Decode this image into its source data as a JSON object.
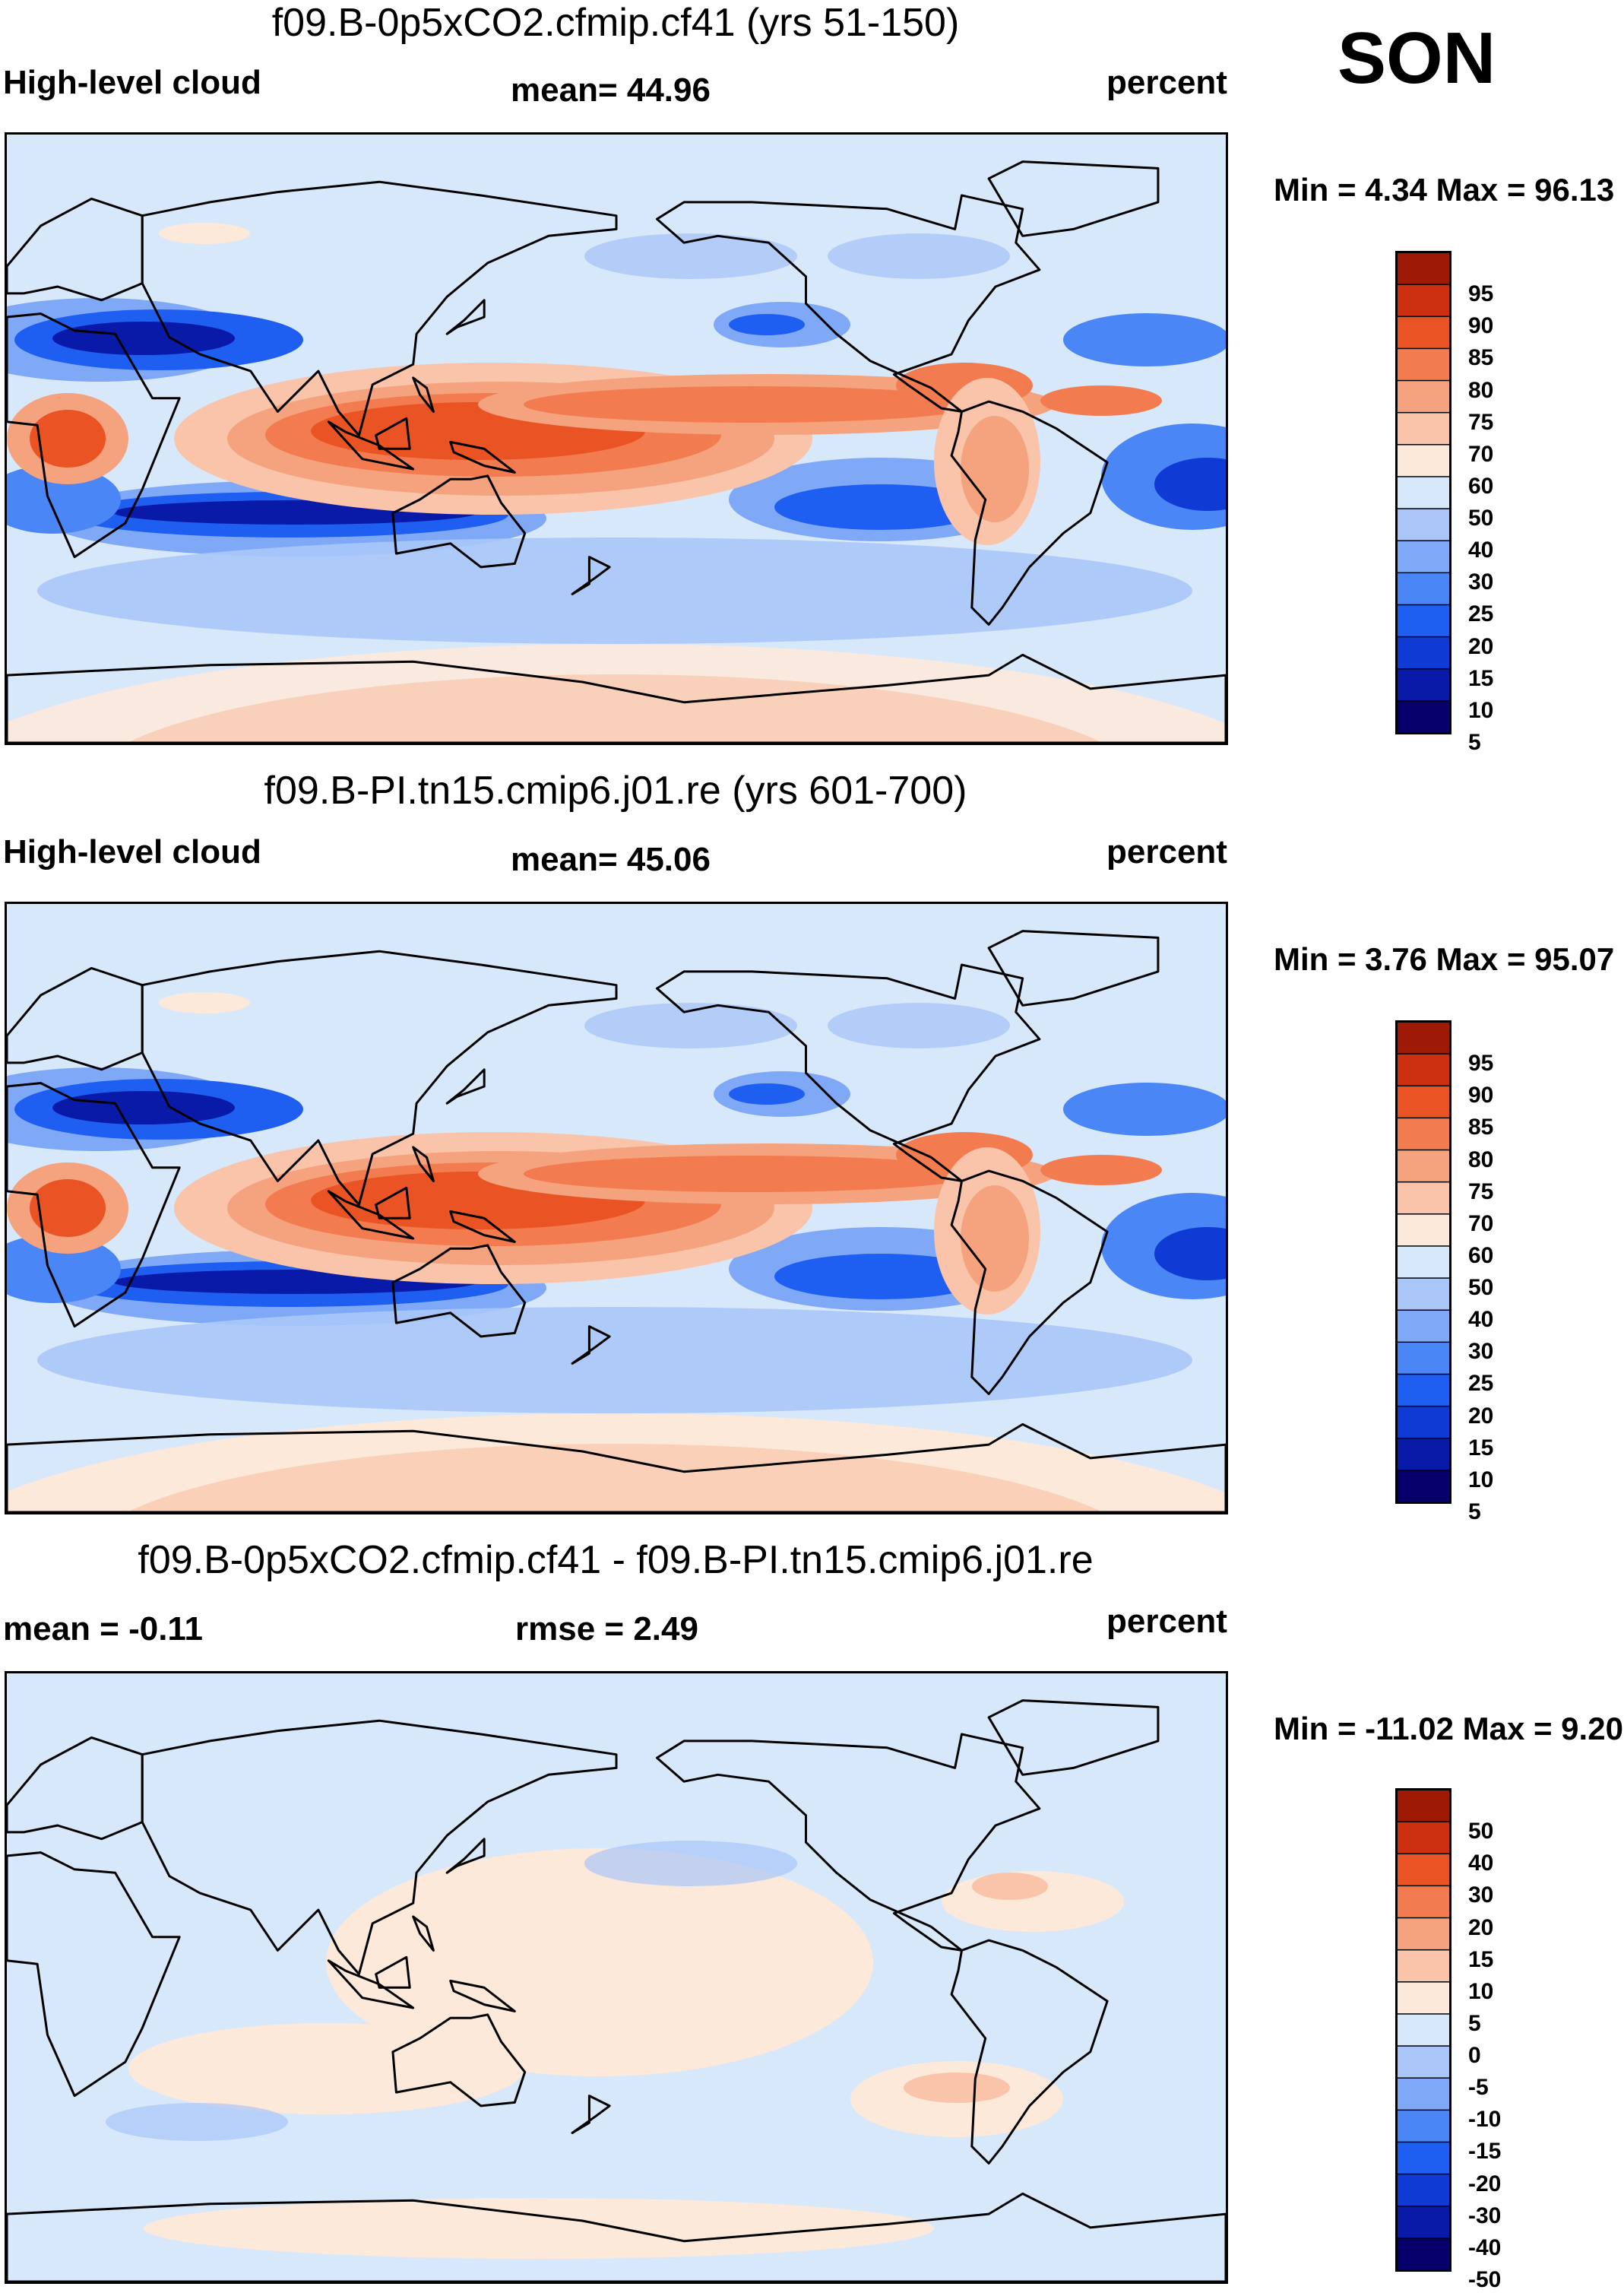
{
  "season": "SON",
  "unit": "percent",
  "colors": {
    "abs_levels": [
      "#08006a",
      "#0a1aa8",
      "#0f3bd4",
      "#1e5ef0",
      "#4a86f5",
      "#7fa9f7",
      "#aac6f8",
      "#d8e8fb",
      "#fde9da",
      "#f9c4a9",
      "#f5a27e",
      "#f27c4f",
      "#ea5424",
      "#cc3010",
      "#9e1a04"
    ],
    "diff_levels": [
      "#08006a",
      "#0a1aa8",
      "#0f3bd4",
      "#1e5ef0",
      "#4a86f5",
      "#7fa9f7",
      "#aac6f8",
      "#d8e8fb",
      "#fde9da",
      "#f9c4a9",
      "#f5a27e",
      "#f27c4f",
      "#ea5424",
      "#cc3010",
      "#9e1a04"
    ]
  },
  "chart_data": [
    {
      "type": "heatmap",
      "title": "f09.B-0p5xCO2.cfmip.cf41 (yrs 51-150)",
      "variable": "High-level cloud",
      "mean_label": "mean=  44.96",
      "mean": 44.96,
      "unit": "percent",
      "min_max_label": "Min =   4.34 Max =  96.13",
      "min": 4.34,
      "max": 96.13,
      "colorbar_ticks": [
        "95",
        "90",
        "85",
        "80",
        "75",
        "70",
        "60",
        "50",
        "40",
        "30",
        "25",
        "20",
        "15",
        "10",
        "5"
      ]
    },
    {
      "type": "heatmap",
      "title": "f09.B-PI.tn15.cmip6.j01.re (yrs 601-700)",
      "variable": "High-level cloud",
      "mean_label": "mean=  45.06",
      "mean": 45.06,
      "unit": "percent",
      "min_max_label": "Min =   3.76 Max =  95.07",
      "min": 3.76,
      "max": 95.07,
      "colorbar_ticks": [
        "95",
        "90",
        "85",
        "80",
        "75",
        "70",
        "60",
        "50",
        "40",
        "30",
        "25",
        "20",
        "15",
        "10",
        "5"
      ]
    },
    {
      "type": "heatmap",
      "title": "f09.B-0p5xCO2.cfmip.cf41 - f09.B-PI.tn15.cmip6.j01.re",
      "mean_label": "mean =  -0.11",
      "mean": -0.11,
      "rmse_label": "rmse =   2.49",
      "rmse": 2.49,
      "unit": "percent",
      "min_max_label": "Min = -11.02 Max =   9.20",
      "min": -11.02,
      "max": 9.2,
      "colorbar_ticks": [
        "50",
        "40",
        "30",
        "20",
        "15",
        "10",
        "5",
        "0",
        "-5",
        "-10",
        "-15",
        "-20",
        "-30",
        "-40",
        "-50"
      ]
    }
  ]
}
